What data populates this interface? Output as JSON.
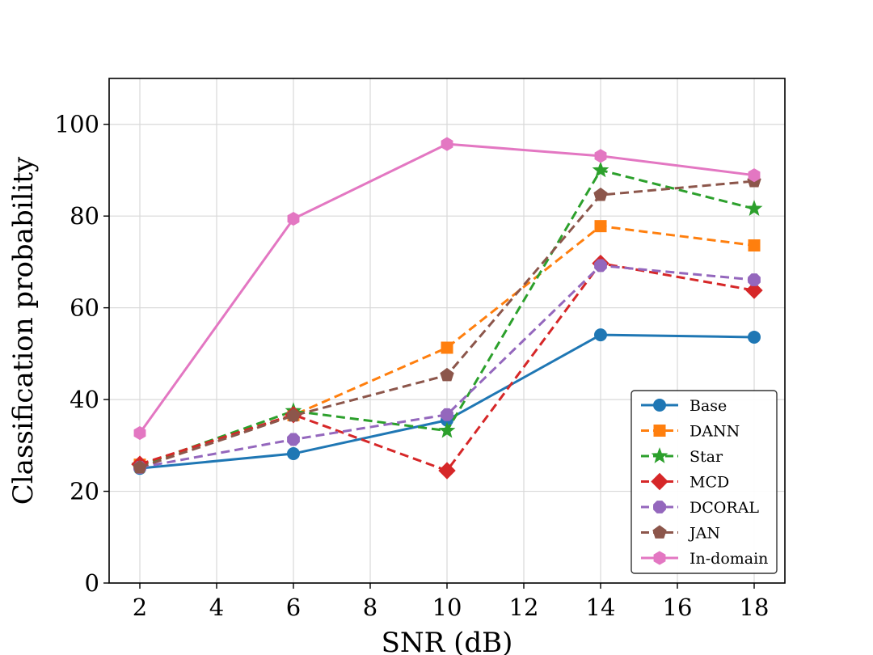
{
  "chart_data": {
    "type": "line",
    "title": "",
    "xlabel": "SNR (dB)",
    "ylabel": "Classification probability",
    "x": [
      2,
      6,
      10,
      14,
      18
    ],
    "xlim": [
      1.2,
      18.8
    ],
    "ylim": [
      0,
      110
    ],
    "xticks": [
      2,
      4,
      6,
      8,
      10,
      12,
      14,
      16,
      18
    ],
    "yticks": [
      0,
      20,
      40,
      60,
      80,
      100
    ],
    "grid": true,
    "legend_position": "lower-right",
    "series": [
      {
        "name": "Base",
        "color": "#1f77b4",
        "dash": "solid",
        "marker": "circle",
        "values": [
          25.0,
          28.2,
          35.5,
          54.1,
          53.6
        ]
      },
      {
        "name": "DANN",
        "color": "#ff7f0e",
        "dash": "dashed",
        "marker": "square",
        "values": [
          25.8,
          36.6,
          51.3,
          77.8,
          73.6
        ]
      },
      {
        "name": "Star",
        "color": "#2ca02c",
        "dash": "dashed",
        "marker": "star",
        "values": [
          25.6,
          37.5,
          33.2,
          90.0,
          81.6
        ]
      },
      {
        "name": "MCD",
        "color": "#d62728",
        "dash": "dashed",
        "marker": "diamond",
        "values": [
          25.9,
          36.7,
          24.5,
          69.7,
          63.8
        ]
      },
      {
        "name": "DCORAL",
        "color": "#9467bd",
        "dash": "dashed",
        "marker": "octagon",
        "values": [
          25.2,
          31.3,
          36.7,
          69.2,
          66.1
        ]
      },
      {
        "name": "JAN",
        "color": "#8c564b",
        "dash": "dashed",
        "marker": "pentagon",
        "values": [
          25.2,
          36.5,
          45.3,
          84.6,
          87.6
        ]
      },
      {
        "name": "In-domain",
        "color": "#e377c2",
        "dash": "solid",
        "marker": "hexagon",
        "values": [
          32.7,
          79.4,
          95.7,
          93.1,
          88.9
        ]
      }
    ]
  }
}
